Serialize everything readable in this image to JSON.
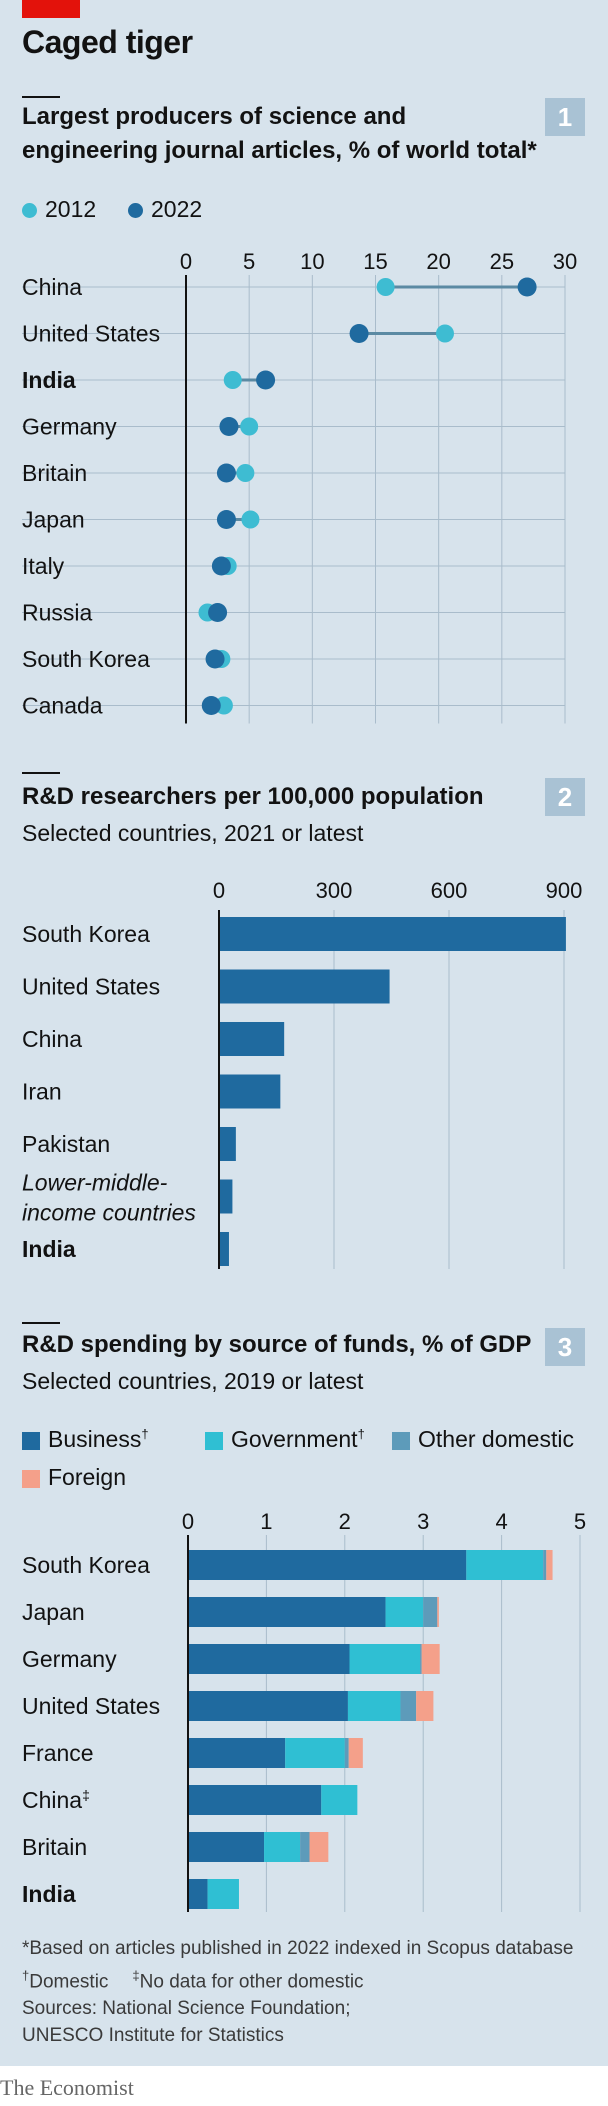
{
  "header": {
    "title": "Caged tiger"
  },
  "colors": {
    "background": "#d7e3ec",
    "accent_red": "#e3120b",
    "badge": "#a9c2d4",
    "dot_2012": "#3ebcd2",
    "dot_2022": "#1f6a9f",
    "connector": "#5b8aa3",
    "business": "#1f6a9f",
    "government": "#2fbfd3",
    "other_domestic": "#5d9bba",
    "foreign": "#f4a08a",
    "gridline": "#a9bccb"
  },
  "sections": {
    "s1": {
      "number": "1",
      "title": "Largest producers of science and engineering journal articles, % of world total*"
    },
    "s2": {
      "number": "2",
      "title": "R&D researchers per 100,000 population",
      "subtitle": "Selected countries, 2021 or latest"
    },
    "s3": {
      "number": "3",
      "title": "R&D spending by source of funds, % of GDP",
      "subtitle": "Selected countries, 2019 or latest"
    }
  },
  "footnotes": {
    "asterisk": "*Based on articles published in 2022 indexed in Scopus database",
    "dagger_symbol": "†",
    "dagger": "Domestic",
    "ddagger_symbol": "‡",
    "ddagger": "No data for other domestic",
    "sources_1": "Sources: National Science Foundation;",
    "sources_2": "UNESCO Institute for Statistics"
  },
  "brand": "The Economist",
  "chart_data": [
    {
      "type": "scatter",
      "subtype": "dumbbell",
      "legend": [
        "2012",
        "2022"
      ],
      "legend_placement": "top-left",
      "xlim": [
        0,
        30
      ],
      "ticks": [
        0,
        5,
        10,
        15,
        20,
        25,
        30
      ],
      "grid": true,
      "categories": [
        "China",
        "United States",
        "India",
        "Germany",
        "Britain",
        "Japan",
        "Italy",
        "Russia",
        "South Korea",
        "Canada"
      ],
      "bold_categories": [
        "India"
      ],
      "series": [
        {
          "name": "2012",
          "values": [
            15.8,
            20.5,
            3.7,
            5.0,
            4.7,
            5.1,
            3.3,
            1.7,
            2.8,
            3.0
          ]
        },
        {
          "name": "2022",
          "values": [
            27.0,
            13.7,
            6.3,
            3.4,
            3.2,
            3.2,
            2.8,
            2.5,
            2.3,
            2.0
          ]
        }
      ]
    },
    {
      "type": "bar",
      "orientation": "horizontal",
      "xlim": [
        0,
        900
      ],
      "ticks": [
        0,
        300,
        600,
        900
      ],
      "grid": true,
      "categories": [
        "South Korea",
        "United States",
        "China",
        "Iran",
        "Pakistan",
        "Lower-middle-income countries",
        "India"
      ],
      "category_lines": [
        [
          "South Korea"
        ],
        [
          "United States"
        ],
        [
          "China"
        ],
        [
          "Iran"
        ],
        [
          "Pakistan"
        ],
        [
          "Lower-middle-",
          "income countries"
        ],
        [
          "India"
        ]
      ],
      "italic_categories": [
        "Lower-middle-income countries"
      ],
      "bold_categories": [
        "India"
      ],
      "values": [
        905,
        445,
        170,
        160,
        44,
        35,
        26
      ]
    },
    {
      "type": "bar",
      "orientation": "horizontal",
      "stacked": true,
      "legend_placement": "top-left",
      "xlim": [
        0,
        5
      ],
      "ticks": [
        0,
        1,
        2,
        3,
        4,
        5
      ],
      "grid": true,
      "categories": [
        "South Korea",
        "Japan",
        "Germany",
        "United States",
        "France",
        "China",
        "Britain",
        "India"
      ],
      "category_marks": [
        "",
        "",
        "",
        "",
        "",
        "‡",
        "",
        ""
      ],
      "bold_categories": [
        "India"
      ],
      "series": [
        {
          "name": "Business",
          "mark": "†",
          "values": [
            3.55,
            2.52,
            2.06,
            2.04,
            1.24,
            1.7,
            0.97,
            0.25
          ]
        },
        {
          "name": "Government",
          "mark": "†",
          "values": [
            0.98,
            0.48,
            0.9,
            0.67,
            0.76,
            0.46,
            0.46,
            0.4
          ]
        },
        {
          "name": "Other domestic",
          "mark": "",
          "values": [
            0.04,
            0.18,
            0.02,
            0.2,
            0.05,
            0.0,
            0.12,
            0.0
          ]
        },
        {
          "name": "Foreign",
          "mark": "",
          "values": [
            0.08,
            0.02,
            0.23,
            0.22,
            0.18,
            0.0,
            0.24,
            0.0
          ]
        }
      ]
    }
  ]
}
